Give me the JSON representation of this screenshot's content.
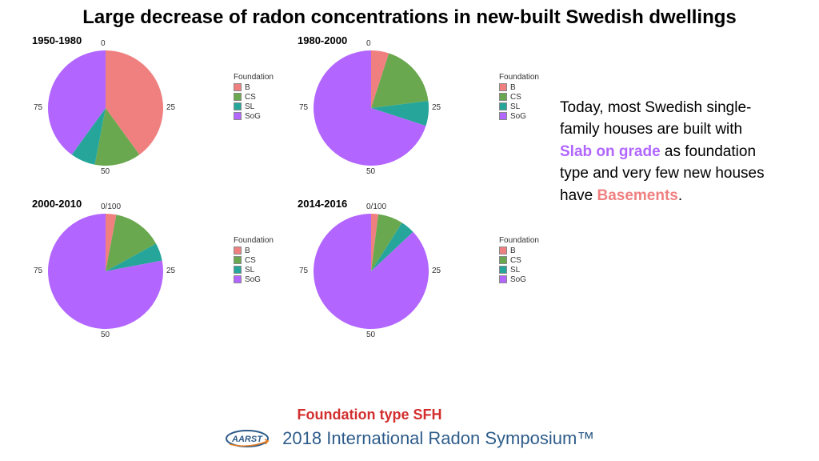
{
  "title": "Large decrease of radon concentrations in new-built Swedish dwellings",
  "subtitle": "Foundation type SFH",
  "symposium": "2018 International Radon Symposium™",
  "logo_text": "AARST",
  "legend": {
    "title": "Foundation",
    "items": [
      {
        "key": "B",
        "label": "B",
        "color": "#f08080"
      },
      {
        "key": "CS",
        "label": "CS",
        "color": "#6aa84f"
      },
      {
        "key": "SL",
        "label": "SL",
        "color": "#26a69a"
      },
      {
        "key": "SoG",
        "label": "SoG",
        "color": "#b266ff"
      }
    ]
  },
  "charts": [
    {
      "title": "1950-1980",
      "ticks": [
        "0",
        "25",
        "50",
        "75"
      ],
      "slices": [
        {
          "key": "B",
          "value": 40,
          "color": "#f08080"
        },
        {
          "key": "CS",
          "value": 13,
          "color": "#6aa84f"
        },
        {
          "key": "SL",
          "value": 7,
          "color": "#26a69a"
        },
        {
          "key": "SoG",
          "value": 40,
          "color": "#b266ff"
        }
      ]
    },
    {
      "title": "1980-2000",
      "ticks": [
        "0",
        "25",
        "50",
        "75"
      ],
      "slices": [
        {
          "key": "B",
          "value": 5,
          "color": "#f08080"
        },
        {
          "key": "CS",
          "value": 18,
          "color": "#6aa84f"
        },
        {
          "key": "SL",
          "value": 7,
          "color": "#26a69a"
        },
        {
          "key": "SoG",
          "value": 70,
          "color": "#b266ff"
        }
      ]
    },
    {
      "title": "2000-2010",
      "ticks": [
        "0/100",
        "25",
        "50",
        "75"
      ],
      "slices": [
        {
          "key": "B",
          "value": 3,
          "color": "#f08080"
        },
        {
          "key": "CS",
          "value": 14,
          "color": "#6aa84f"
        },
        {
          "key": "SL",
          "value": 5,
          "color": "#26a69a"
        },
        {
          "key": "SoG",
          "value": 78,
          "color": "#b266ff"
        }
      ]
    },
    {
      "title": "2014-2016",
      "ticks": [
        "0/100",
        "25",
        "50",
        "75"
      ],
      "slices": [
        {
          "key": "B",
          "value": 2,
          "color": "#f08080"
        },
        {
          "key": "CS",
          "value": 7,
          "color": "#6aa84f"
        },
        {
          "key": "SL",
          "value": 4,
          "color": "#26a69a"
        },
        {
          "key": "SoG",
          "value": 87,
          "color": "#b266ff"
        }
      ]
    }
  ],
  "side_text": {
    "pre": "Today, most Swedish single-family houses are built with ",
    "hl1": "Slab on grade",
    "mid": " as foundation type and very few new houses have ",
    "hl2": "Basements",
    "post": "."
  },
  "pie": {
    "radius": 72,
    "tick_fontsize": 10,
    "title_fontsize": 13
  }
}
